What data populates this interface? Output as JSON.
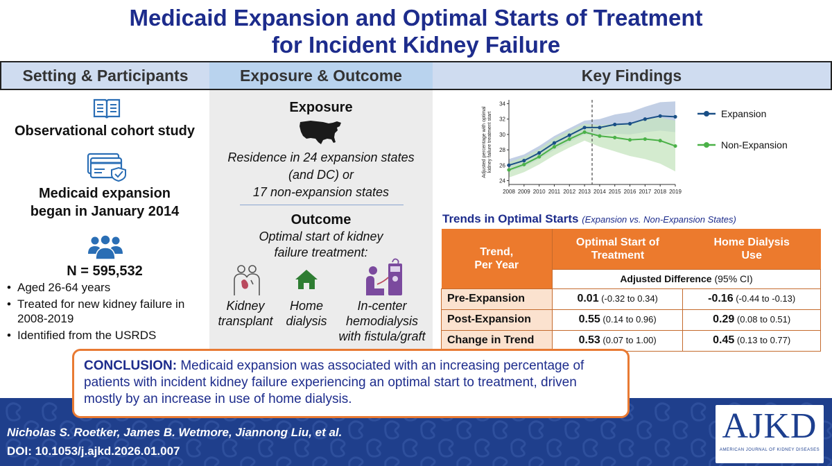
{
  "title": {
    "line1": "Medicaid Expansion and Optimal Starts of Treatment",
    "line2": "for Incident Kidney Failure"
  },
  "headers": {
    "setting": "Setting & Participants",
    "exposure": "Exposure & Outcome",
    "findings": "Key Findings"
  },
  "setting": {
    "design_icon": "open-book-icon",
    "design": "Observational cohort study",
    "card_icon": "insurance-card-icon",
    "expansion_line1": "Medicaid expansion",
    "expansion_line2": "began in January 2014",
    "people_icon": "people-group-icon",
    "n": "N = 595,532",
    "bullets": [
      "Aged 26-64 years",
      "Treated for new kidney failure in 2008-2019",
      "Identified from the USRDS"
    ]
  },
  "exposure": {
    "heading": "Exposure",
    "map_icon": "usa-map-icon",
    "text_line1": "Residence in 24 expansion states",
    "text_line2": "(and DC) or",
    "text_line3": "17 non-expansion states",
    "outcome_heading": "Outcome",
    "outcome_line1": "Optimal start of kidney",
    "outcome_line2": "failure treatment:",
    "options": [
      {
        "icon": "kidney-transplant-icon",
        "line1": "Kidney",
        "line2": "transplant"
      },
      {
        "icon": "house-icon",
        "line1": "Home",
        "line2": "dialysis"
      },
      {
        "icon": "hemodialysis-machine-icon",
        "line1": "In-center",
        "line2": "hemodialysis",
        "line3": "with fistula/graft"
      }
    ]
  },
  "chart_data": {
    "type": "line",
    "title": "",
    "xlabel": "",
    "ylabel": "Adjusted percentage with optimal kidney failure treatment start",
    "x": [
      2008,
      2009,
      2010,
      2011,
      2012,
      2013,
      2014,
      2015,
      2016,
      2017,
      2018,
      2019
    ],
    "ylim": [
      23.5,
      34.5
    ],
    "yticks": [
      24,
      26,
      28,
      30,
      32,
      34
    ],
    "vline": 2013.5,
    "series": [
      {
        "name": "Expansion",
        "color": "#1a4f86",
        "band_color": "#aebfdc",
        "values": [
          26.0,
          26.6,
          27.6,
          28.9,
          29.9,
          30.9,
          30.9,
          31.3,
          31.4,
          32.0,
          32.4,
          32.3
        ],
        "lower": [
          25.2,
          25.8,
          26.8,
          28.0,
          29.0,
          30.0,
          29.9,
          30.1,
          30.0,
          30.3,
          30.5,
          30.3
        ],
        "upper": [
          26.8,
          27.4,
          28.5,
          29.8,
          30.8,
          31.8,
          32.0,
          32.6,
          32.9,
          33.6,
          34.2,
          34.3
        ]
      },
      {
        "name": "Non-Expansion",
        "color": "#4bb148",
        "band_color": "#c6e4bf",
        "values": [
          25.4,
          26.1,
          27.1,
          28.4,
          29.4,
          30.3,
          29.8,
          29.6,
          29.3,
          29.4,
          29.2,
          28.5
        ],
        "lower": [
          24.4,
          25.1,
          26.1,
          27.3,
          28.3,
          29.2,
          28.4,
          27.8,
          27.2,
          26.8,
          26.2,
          25.2
        ],
        "upper": [
          26.4,
          27.1,
          28.1,
          29.5,
          30.5,
          31.4,
          31.2,
          31.4,
          31.4,
          32.0,
          32.2,
          31.8
        ]
      }
    ],
    "legend_position": "right"
  },
  "table": {
    "title": "Trends in Optimal Starts",
    "subtitle": "(Expansion vs. Non-Expansion States)",
    "col0": "Trend,\nPer Year",
    "col1": "Optimal Start of\nTreatment",
    "col2": "Home Dialysis\nUse",
    "adj_bold": "Adjusted Difference",
    "adj_rest": "(95% CI)",
    "rows": [
      {
        "label": "Pre-Expansion",
        "v1": "0.01",
        "ci1": "(-0.32 to 0.34)",
        "v2": "-0.16",
        "ci2": "(-0.44 to -0.13)"
      },
      {
        "label": "Post-Expansion",
        "v1": "0.55",
        "ci1": "(0.14 to 0.96)",
        "v2": "0.29",
        "ci2": "(0.08 to 0.51)"
      },
      {
        "label": "Change in Trend",
        "v1": "0.53",
        "ci1": "(0.07 to 1.00)",
        "v2": "0.45",
        "ci2": "(0.13 to 0.77)"
      }
    ]
  },
  "conclusion": {
    "label": "CONCLUSION:",
    "text": "Medicaid expansion was associated with an increasing percentage of patients with incident kidney failure experiencing an optimal start to treatment, driven mostly by an increase in use of home dialysis."
  },
  "footer": {
    "authors": "Nicholas S. Roetker, James B. Wetmore, Jiannong Liu, et al.",
    "doi": "DOI: 10.1053/j.ajkd.2026.01.007",
    "logo_text": "AJKD",
    "logo_sub": "AMERICAN JOURNAL OF KIDNEY DISEASES"
  },
  "colors": {
    "title_navy": "#1d2c8c",
    "header_blue": "#cfdcf0",
    "orange": "#ec7a2d",
    "banner_blue": "#1f3f8c"
  }
}
